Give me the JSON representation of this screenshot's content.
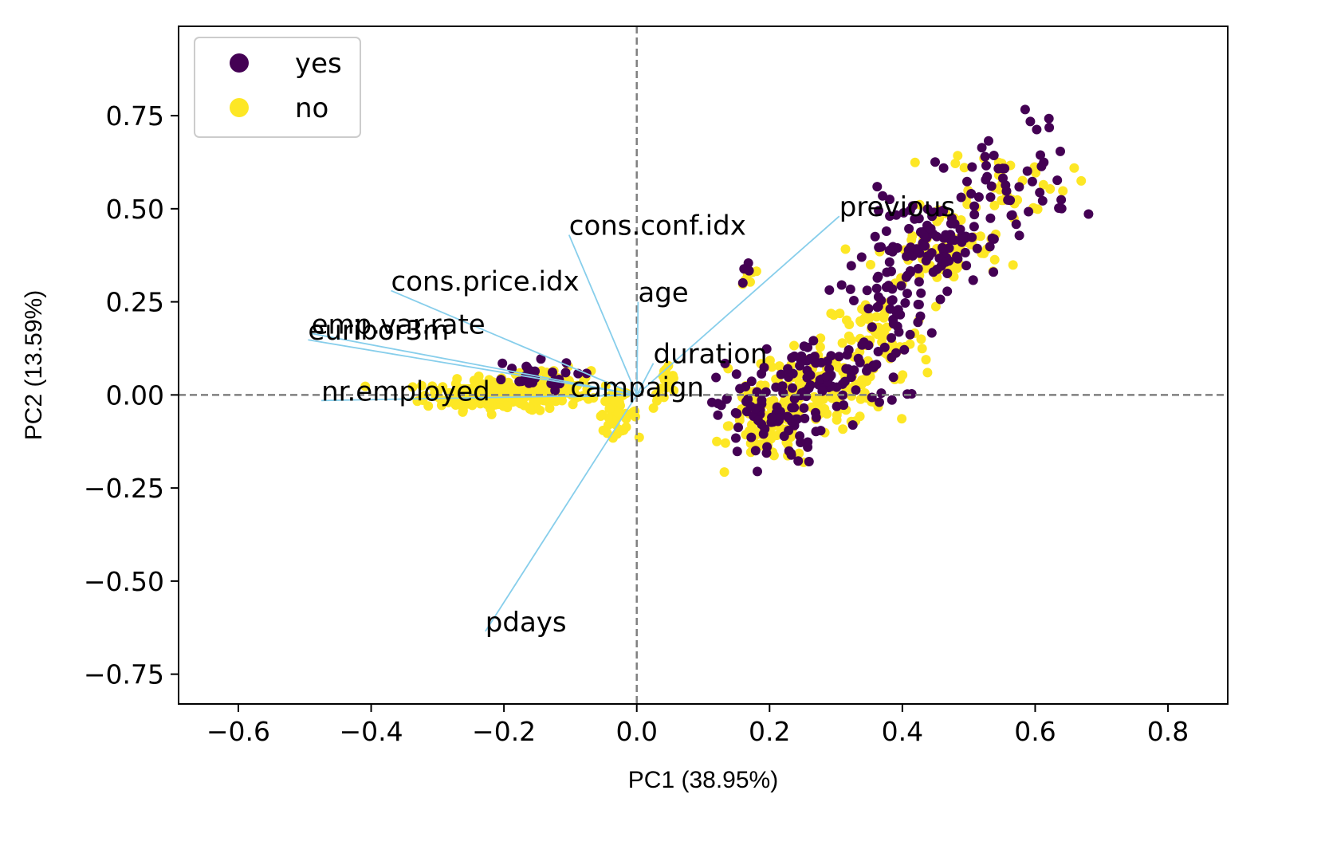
{
  "chart_data": {
    "type": "scatter",
    "xlabel": "PC1 (38.95%)",
    "ylabel": "PC2 (13.59%)",
    "xlim": [
      -0.69,
      0.89
    ],
    "ylim": [
      -0.83,
      0.99
    ],
    "xticks": [
      -0.6,
      -0.4,
      -0.2,
      0.0,
      0.2,
      0.4,
      0.6,
      0.8
    ],
    "xtick_labels": [
      "−0.6",
      "−0.4",
      "−0.2",
      "0.0",
      "0.2",
      "0.4",
      "0.6",
      "0.8"
    ],
    "yticks": [
      -0.75,
      -0.5,
      -0.25,
      0.0,
      0.25,
      0.5,
      0.75
    ],
    "ytick_labels": [
      "−0.75",
      "−0.50",
      "−0.25",
      "0.00",
      "0.25",
      "0.50",
      "0.75"
    ],
    "grid": false,
    "reference_lines": {
      "x": 0,
      "y": 0,
      "style": "dashed",
      "color": "#808080"
    },
    "legend": {
      "position": "top-left",
      "entries": [
        {
          "label": "yes",
          "color": "#440154"
        },
        {
          "label": "no",
          "color": "#fde725"
        }
      ]
    },
    "series": [
      {
        "name": "yes",
        "color": "#440154",
        "clusters": [
          {
            "cx": -0.17,
            "cy": 0.05,
            "sx": 0.04,
            "sy": 0.02,
            "n": 25
          },
          {
            "cx": 0.2,
            "cy": -0.05,
            "sx": 0.04,
            "sy": 0.07,
            "n": 90
          },
          {
            "cx": 0.3,
            "cy": 0.05,
            "sx": 0.05,
            "sy": 0.05,
            "n": 70
          },
          {
            "cx": 0.38,
            "cy": 0.25,
            "sx": 0.03,
            "sy": 0.08,
            "n": 50
          },
          {
            "cx": 0.45,
            "cy": 0.4,
            "sx": 0.05,
            "sy": 0.06,
            "n": 90
          },
          {
            "cx": 0.55,
            "cy": 0.55,
            "sx": 0.05,
            "sy": 0.06,
            "n": 50
          },
          {
            "cx": 0.62,
            "cy": 0.72,
            "sx": 0.02,
            "sy": 0.04,
            "n": 6
          },
          {
            "cx": 0.17,
            "cy": 0.33,
            "sx": 0.008,
            "sy": 0.01,
            "n": 4
          }
        ]
      },
      {
        "name": "no",
        "color": "#fde725",
        "clusters": [
          {
            "cx": -0.2,
            "cy": 0.0,
            "sx": 0.06,
            "sy": 0.02,
            "n": 220
          },
          {
            "cx": -0.13,
            "cy": 0.03,
            "sx": 0.03,
            "sy": 0.02,
            "n": 60
          },
          {
            "cx": -0.03,
            "cy": -0.05,
            "sx": 0.015,
            "sy": 0.025,
            "n": 40
          },
          {
            "cx": 0.045,
            "cy": 0.02,
            "sx": 0.01,
            "sy": 0.03,
            "n": 20
          },
          {
            "cx": 0.2,
            "cy": -0.08,
            "sx": 0.03,
            "sy": 0.05,
            "n": 110
          },
          {
            "cx": 0.28,
            "cy": 0.02,
            "sx": 0.05,
            "sy": 0.05,
            "n": 130
          },
          {
            "cx": 0.36,
            "cy": 0.15,
            "sx": 0.04,
            "sy": 0.06,
            "n": 60
          },
          {
            "cx": 0.46,
            "cy": 0.38,
            "sx": 0.05,
            "sy": 0.05,
            "n": 60
          },
          {
            "cx": 0.55,
            "cy": 0.57,
            "sx": 0.05,
            "sy": 0.05,
            "n": 40
          },
          {
            "cx": 0.17,
            "cy": 0.31,
            "sx": 0.01,
            "sy": 0.02,
            "n": 8
          }
        ]
      }
    ],
    "loadings": [
      {
        "label": "previous",
        "x": 0.305,
        "y": 0.48
      },
      {
        "label": "cons.conf.idx",
        "x": -0.102,
        "y": 0.43
      },
      {
        "label": "cons.price.idx",
        "x": -0.37,
        "y": 0.28
      },
      {
        "label": "age",
        "x": 0.002,
        "y": 0.25
      },
      {
        "label": "emp.var.rate",
        "x": -0.49,
        "y": 0.165
      },
      {
        "label": "euribor3m",
        "x": -0.495,
        "y": 0.148
      },
      {
        "label": "duration",
        "x": 0.025,
        "y": 0.085
      },
      {
        "label": "nr.employed",
        "x": -0.475,
        "y": -0.015
      },
      {
        "label": "campaign",
        "x": -0.1,
        "y": -0.005
      },
      {
        "label": "pdays",
        "x": -0.228,
        "y": -0.635
      }
    ],
    "loading_color": "#87ceeb"
  }
}
